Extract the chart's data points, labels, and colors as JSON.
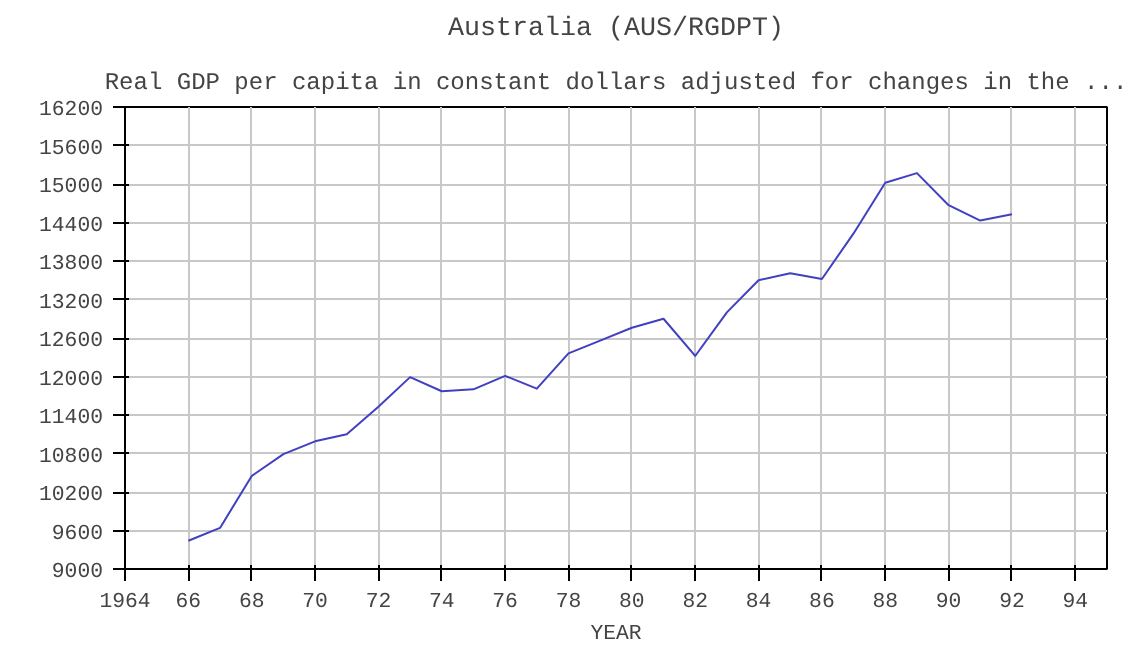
{
  "chart_data": {
    "type": "line",
    "title": "Australia (AUS/RGDPT)",
    "subtitle": "Real GDP per capita in constant dollars adjusted for changes in the ...",
    "xlabel": "YEAR",
    "x": [
      1966,
      1967,
      1968,
      1969,
      1970,
      1971,
      1972,
      1973,
      1974,
      1975,
      1976,
      1977,
      1978,
      1979,
      1980,
      1981,
      1982,
      1983,
      1984,
      1985,
      1986,
      1987,
      1988,
      1989,
      1990,
      1991,
      1992
    ],
    "series": [
      {
        "color": "#4040c0",
        "values": [
          9440,
          9640,
          10450,
          10790,
          10990,
          11100,
          11530,
          11990,
          11770,
          11800,
          12010,
          11810,
          12360,
          12560,
          12760,
          12900,
          12320,
          13000,
          13500,
          13610,
          13520,
          14230,
          15020,
          15170,
          14670,
          14430,
          14530
        ]
      }
    ],
    "xlim": [
      1964,
      1995
    ],
    "xticks": [
      {
        "value": 1964,
        "label": "1964"
      },
      {
        "value": 1966,
        "label": "66"
      },
      {
        "value": 1968,
        "label": "68"
      },
      {
        "value": 1970,
        "label": "70"
      },
      {
        "value": 1972,
        "label": "72"
      },
      {
        "value": 1974,
        "label": "74"
      },
      {
        "value": 1976,
        "label": "76"
      },
      {
        "value": 1978,
        "label": "78"
      },
      {
        "value": 1980,
        "label": "80"
      },
      {
        "value": 1982,
        "label": "82"
      },
      {
        "value": 1984,
        "label": "84"
      },
      {
        "value": 1986,
        "label": "86"
      },
      {
        "value": 1988,
        "label": "88"
      },
      {
        "value": 1990,
        "label": "90"
      },
      {
        "value": 1992,
        "label": "92"
      },
      {
        "value": 1994,
        "label": "94"
      }
    ],
    "ylim": [
      9000,
      16200
    ],
    "yticks": [
      9000,
      9600,
      10200,
      10800,
      11400,
      12000,
      12600,
      13200,
      13800,
      14400,
      15000,
      15600,
      16200
    ],
    "grid": true,
    "marker": "none",
    "line_style": "solid"
  }
}
